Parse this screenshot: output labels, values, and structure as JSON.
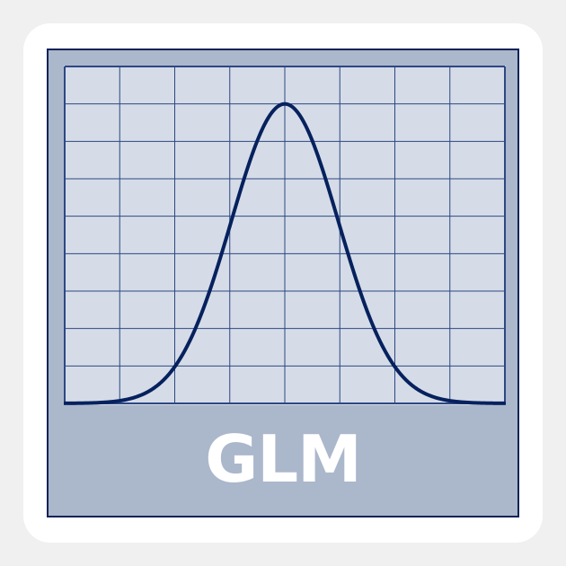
{
  "label": "GLM",
  "colors": {
    "page_background": "#f0f0f0",
    "sticker": "#ffffff",
    "card": "#abb7cb",
    "plot_area": "#d5dce7",
    "grid_lines": "#2d4783",
    "curve": "#06215e",
    "text": "#ffffff"
  },
  "icon": "bell-curve-icon",
  "chart_data": {
    "type": "line",
    "shape": "normal-distribution",
    "grid": true,
    "grid_columns": 8,
    "grid_rows": 9
  }
}
